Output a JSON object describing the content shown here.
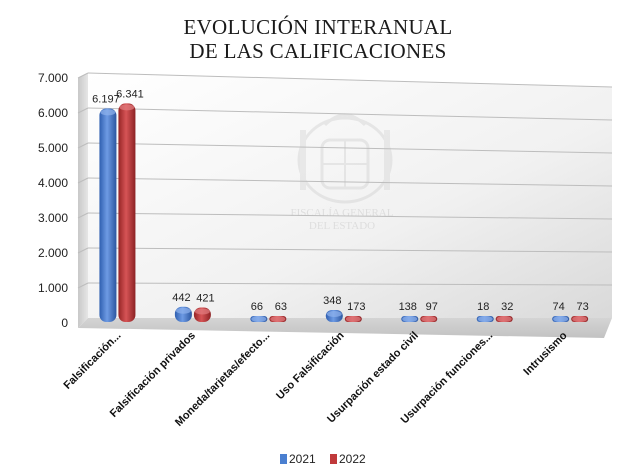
{
  "chart_data": {
    "type": "bar",
    "title_lines": [
      "EVOLUCIÓN INTERANUAL",
      "DE LAS CALIFICACIONES"
    ],
    "categories": [
      "Falsificación...",
      "Falsificación privados",
      "Moneda/tarjetas/efecto...",
      "Uso Falsificación",
      "Usurpación estado civil",
      "Usurpación funciones...",
      "Intrusismo"
    ],
    "series": [
      {
        "name": "2021",
        "values": [
          6197,
          442,
          66,
          348,
          138,
          18,
          74
        ],
        "color": "#4a7fd0"
      },
      {
        "name": "2022",
        "values": [
          6341,
          421,
          63,
          173,
          97,
          32,
          73
        ],
        "color": "#c0393b"
      }
    ],
    "data_labels": [
      [
        "6.197",
        "442",
        "66",
        "348",
        "138",
        "18",
        "74"
      ],
      [
        "6.341",
        "421",
        "63",
        "173",
        "97",
        "32",
        "73"
      ]
    ],
    "ytick_labels": [
      "0",
      "1.000",
      "2.000",
      "3.000",
      "4.000",
      "5.000",
      "6.000",
      "7.000"
    ],
    "ylim": [
      0,
      7000
    ],
    "grid": true,
    "legend_position": "bottom",
    "watermark_text": [
      "FISCALÍA GENERAL",
      "DEL ESTADO"
    ]
  }
}
